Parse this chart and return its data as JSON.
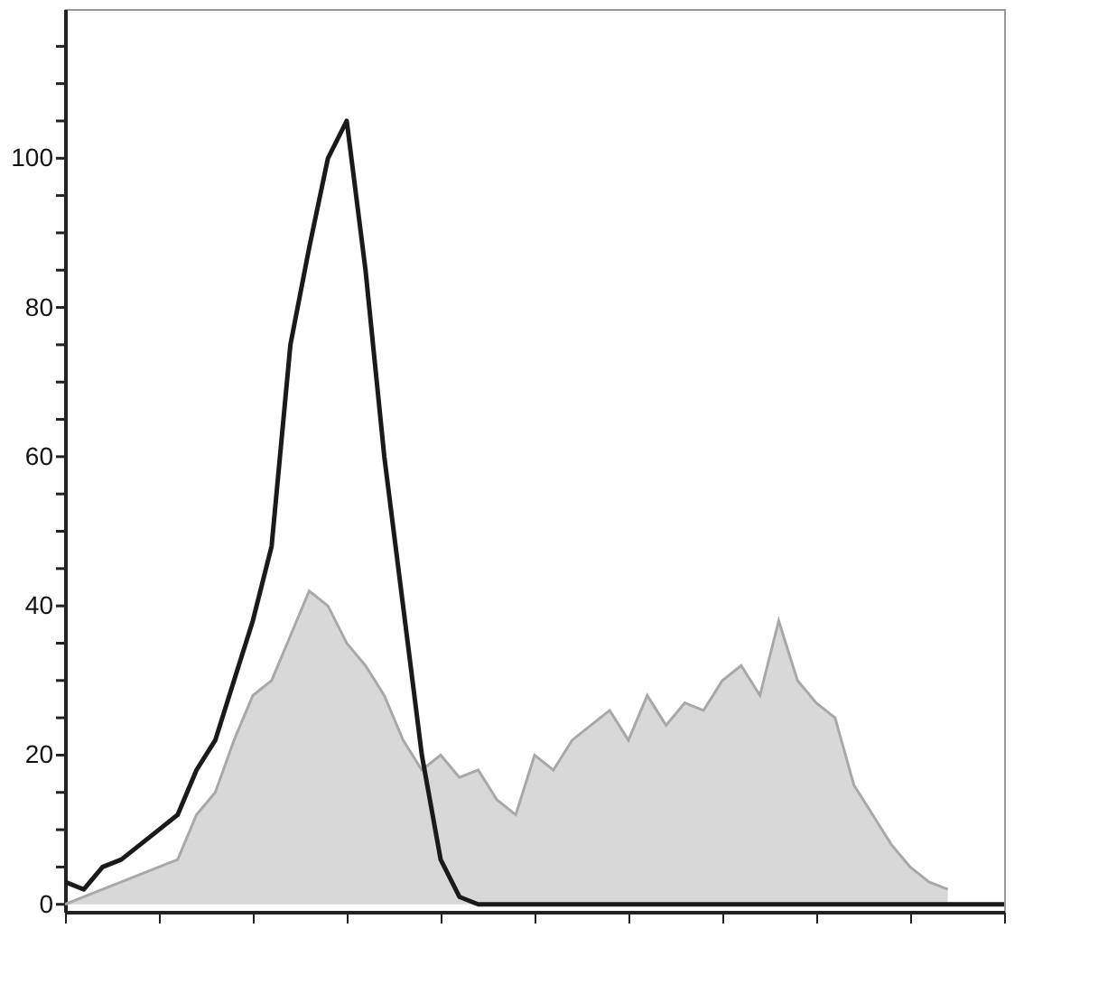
{
  "chart_data": {
    "type": "line",
    "categories": [
      null,
      null,
      null,
      null,
      null,
      null,
      null,
      null,
      null,
      null,
      null,
      null,
      null,
      null,
      null,
      null,
      null,
      null,
      null,
      null,
      null,
      null,
      null,
      null,
      null,
      null,
      null,
      null,
      null,
      null,
      null,
      null,
      null,
      null,
      null,
      null,
      null,
      null,
      null,
      null,
      null,
      null,
      null,
      null,
      null,
      null,
      null,
      null,
      null,
      null,
      null
    ],
    "series": [
      {
        "type": "area",
        "color": "#c8c8c8",
        "values": [
          0,
          1,
          2,
          3,
          4,
          5,
          6,
          12,
          15,
          22,
          28,
          30,
          36,
          42,
          40,
          35,
          32,
          28,
          22,
          18,
          20,
          17,
          18,
          14,
          12,
          20,
          18,
          22,
          24,
          26,
          22,
          28,
          24,
          27,
          26,
          30,
          32,
          28,
          38,
          30,
          27,
          25,
          16,
          12,
          8,
          5,
          3,
          2,
          null,
          null,
          null
        ]
      },
      {
        "color": "#1a1a1a",
        "values": [
          3,
          2,
          5,
          6,
          8,
          10,
          12,
          18,
          22,
          30,
          38,
          48,
          75,
          88,
          100,
          105,
          85,
          60,
          40,
          20,
          6,
          1,
          0,
          0,
          0,
          0,
          0,
          0,
          0,
          0,
          0,
          0,
          0,
          0,
          0,
          0,
          0,
          0,
          0,
          0,
          0,
          0,
          0,
          0,
          0,
          0,
          0,
          0,
          0,
          0,
          0
        ]
      }
    ],
    "ylim": [
      -1,
      120
    ],
    "yticks": [
      0,
      {
        "value": 5,
        "label": null
      },
      {
        "value": 10,
        "label": null
      },
      {
        "value": 15,
        "label": null
      },
      20,
      {
        "value": 25,
        "label": null
      },
      {
        "value": 30,
        "label": null
      },
      {
        "value": 35,
        "label": null
      },
      40,
      {
        "value": 45,
        "label": null
      },
      {
        "value": 50,
        "label": null
      },
      {
        "value": 55,
        "label": null
      },
      60,
      {
        "value": 65,
        "label": null
      },
      {
        "value": 70,
        "label": null
      },
      {
        "value": 75,
        "label": null
      },
      80,
      {
        "value": 85,
        "label": null
      },
      {
        "value": 90,
        "label": null
      },
      {
        "value": 95,
        "label": null
      },
      100,
      {
        "value": 105,
        "label": null
      },
      {
        "value": 110,
        "label": null
      },
      {
        "value": 115,
        "label": null
      }
    ],
    "tick_labels": "y",
    "grid": false
  }
}
